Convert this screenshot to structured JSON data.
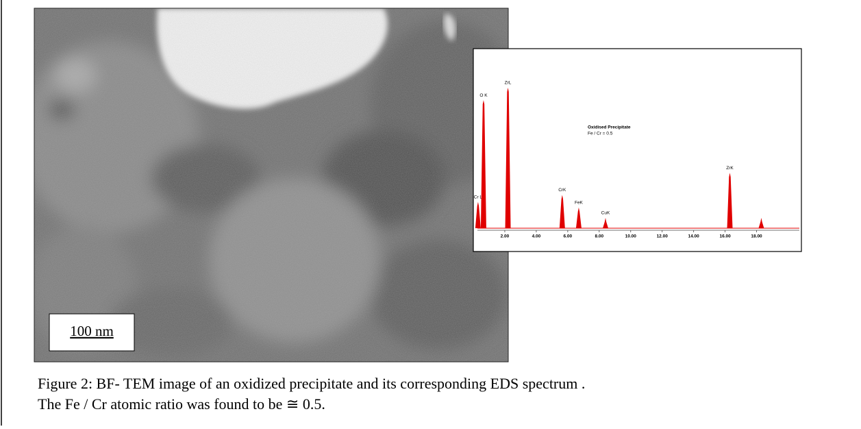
{
  "figure": {
    "scale_bar": "100 nm",
    "spectrum": {
      "type": "spectrum",
      "title": "Oxidised Precipitate",
      "subtitle": "Fe / Cr = 0.5",
      "xlim": [
        0,
        20.5
      ],
      "xticks": [
        {
          "value": 2,
          "label": "2.00"
        },
        {
          "value": 4,
          "label": "4.00"
        },
        {
          "value": 6,
          "label": "6.00"
        },
        {
          "value": 8,
          "label": "8.00"
        },
        {
          "value": 10,
          "label": "10.00"
        },
        {
          "value": 12,
          "label": "12.00"
        },
        {
          "value": 14,
          "label": "14.00"
        },
        {
          "value": 16,
          "label": "16.00"
        },
        {
          "value": 18,
          "label": "18.00"
        }
      ],
      "color": "#e00000",
      "peaks": [
        {
          "label": "Cr L",
          "x": 0.3,
          "intensity": 38
        },
        {
          "label": "O K",
          "x": 0.65,
          "intensity": 185
        },
        {
          "label": "ZrL",
          "x": 2.2,
          "intensity": 203
        },
        {
          "label": "CrK",
          "x": 5.65,
          "intensity": 48
        },
        {
          "label": "FeK",
          "x": 6.7,
          "intensity": 30
        },
        {
          "label": "CuK",
          "x": 8.4,
          "intensity": 15
        },
        {
          "label": "ZrK",
          "x": 16.3,
          "intensity": 80
        },
        {
          "label": null,
          "x": 18.3,
          "intensity": 15
        }
      ]
    },
    "caption": [
      "Figure 2: BF- TEM image of  an oxidized precipitate and its corresponding EDS spectrum .",
      "The Fe / Cr atomic ratio was found to be ≅ 0.5."
    ]
  }
}
